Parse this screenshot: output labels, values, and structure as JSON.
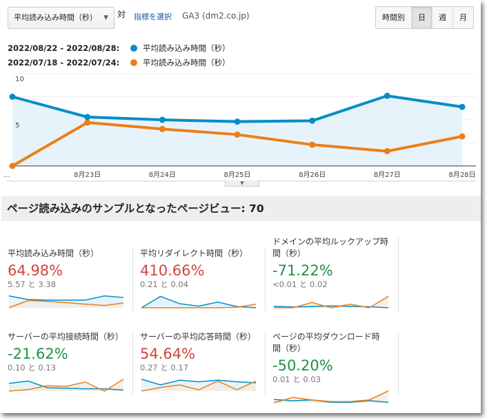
{
  "toolbar": {
    "metric_dropdown": "平均読み込み時間（秒）",
    "vs": "対",
    "select_metric": "指標を選択",
    "property": "GA3 (dm2.co.jp)",
    "periods": [
      "時間別",
      "日",
      "週",
      "月"
    ],
    "active_period": "日"
  },
  "legend": [
    {
      "range": "2022/08/22 - 2022/08/28:",
      "metric": "平均読み込み時間（秒）",
      "color": "#058dc7"
    },
    {
      "range": "2022/07/18 - 2022/07/24:",
      "metric": "平均読み込み時間（秒）",
      "color": "#ed7e17"
    }
  ],
  "chart_data": {
    "type": "line",
    "x": [
      "…",
      "8月23日",
      "8月24日",
      "8月25日",
      "8月26日",
      "8月27日",
      "8月28日"
    ],
    "ylim": [
      0,
      10
    ],
    "yticks": [
      "10",
      "5"
    ],
    "grid": true,
    "series": [
      {
        "name": "平均読み込み時間（秒）",
        "color": "#058dc7",
        "values": [
          7.5,
          5.3,
          5.0,
          4.8,
          4.9,
          7.6,
          6.4
        ]
      },
      {
        "name": "平均読み込み時間（秒）",
        "color": "#ed7e17",
        "values": [
          0,
          4.7,
          4.0,
          3.4,
          2.3,
          1.6,
          3.2
        ]
      }
    ]
  },
  "section_title": "ページ読み込みのサンプルとなったページビュー: 70",
  "cards": [
    {
      "title": "平均読み込み時間（秒）",
      "pct": "64.98%",
      "color": "#d0463a",
      "compare": "5.57 と 3.38",
      "blue": [
        0.96,
        0.67,
        0.62,
        0.62,
        0.62,
        0.96,
        0.83
      ],
      "orange": [
        0,
        0.58,
        0.52,
        0.42,
        0.29,
        0.19,
        0.38
      ]
    },
    {
      "title": "平均リダイレクト時間（秒）",
      "pct": "410.66%",
      "color": "#d0463a",
      "compare": "0.21 と 0.04",
      "blue": [
        0,
        0.92,
        0.33,
        0.13,
        0.46,
        0.1,
        0
      ],
      "orange": [
        0,
        0,
        0,
        0,
        0,
        0.04,
        0.29
      ]
    },
    {
      "title": "ドメインの平均ルックアップ時間（秒）",
      "pct": "-71.22%",
      "color": "#1e9146",
      "compare": "<0.01 と 0.02",
      "blue": [
        0.12,
        0.06,
        0.1,
        0.15,
        0.12,
        0.08,
        0
      ],
      "orange": [
        0,
        0,
        0.42,
        0,
        0.29,
        0,
        0.92
      ]
    },
    {
      "title": "サーバーの平均接続時間（秒）",
      "pct": "-21.62%",
      "color": "#1e9146",
      "compare": "0.10 と 0.13",
      "blue": [
        0.62,
        0.81,
        0.27,
        0.23,
        0.19,
        0.19,
        0.08
      ],
      "orange": [
        0,
        0.12,
        0.44,
        0.38,
        0.73,
        0,
        0.96
      ]
    },
    {
      "title": "サーバーの平均応答時間（秒）",
      "pct": "54.64%",
      "color": "#d0463a",
      "compare": "0.27 と 0.17",
      "blue": [
        0.96,
        0.5,
        0.88,
        0.75,
        0.88,
        0.75,
        0.67
      ],
      "orange": [
        0,
        0.29,
        0.5,
        0.1,
        0.81,
        0.1,
        0.81
      ]
    },
    {
      "title": "ページの平均ダウンロード時間（秒）",
      "pct": "-50.20%",
      "color": "#1e9146",
      "compare": "0.01 と 0.03",
      "blue": [
        0.27,
        0.17,
        0.23,
        0.04,
        0.04,
        0.17,
        0.04
      ],
      "orange": [
        0,
        0.44,
        0.23,
        0.1,
        0.1,
        0.23,
        0.96
      ]
    }
  ]
}
